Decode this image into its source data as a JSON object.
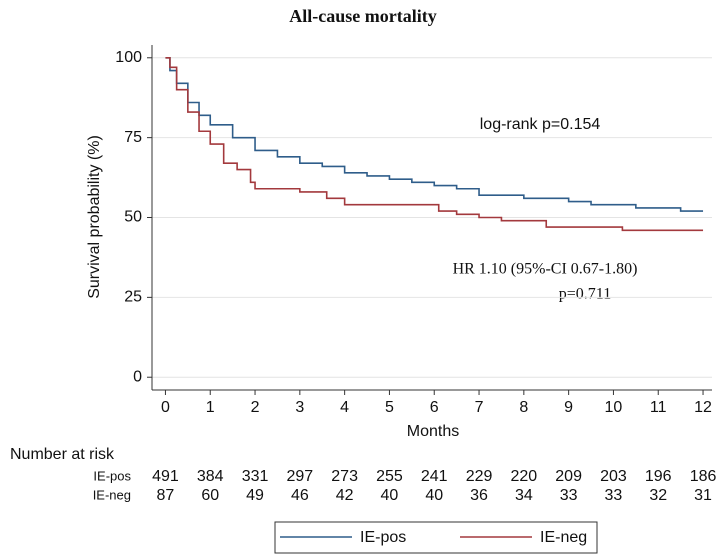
{
  "chart_data": {
    "type": "line",
    "step": true,
    "title": "All-cause mortality",
    "x_label": "Months",
    "y_label": "Survival probability (%)",
    "annotations": [
      "log-rank p=0.154",
      "HR 1.10 (95%-CI 0.67-1.80)",
      "p=0.711"
    ],
    "xlim": [
      -0.3,
      12.2
    ],
    "ylim": [
      -4,
      104
    ],
    "xticks": [
      0,
      1,
      2,
      3,
      4,
      5,
      6,
      7,
      8,
      9,
      10,
      11,
      12
    ],
    "yticks": [
      0,
      25,
      50,
      75,
      100
    ],
    "grid": true,
    "series": [
      {
        "name": "IE-pos",
        "color": "#2f5d8a",
        "x": [
          0,
          0.1,
          0.25,
          0.5,
          0.75,
          1,
          1.5,
          2,
          2.5,
          3,
          3.5,
          4,
          4.5,
          5,
          5.5,
          6,
          6.5,
          7,
          7.5,
          8,
          8.5,
          9,
          9.5,
          10,
          10.5,
          11,
          11.5,
          12
        ],
        "values": [
          100,
          96,
          92,
          86,
          82,
          79,
          75,
          71,
          69,
          67,
          66,
          64,
          63,
          62,
          61,
          60,
          59,
          57,
          57,
          56,
          56,
          55,
          54,
          54,
          53,
          53,
          52,
          52
        ]
      },
      {
        "name": "IE-neg",
        "color": "#a3393d",
        "x": [
          0,
          0.1,
          0.25,
          0.5,
          0.75,
          1,
          1.3,
          1.6,
          1.9,
          2,
          3,
          3.6,
          4,
          6.1,
          6.5,
          7,
          7.5,
          8.5,
          10.2,
          12
        ],
        "values": [
          100,
          97,
          90,
          83,
          77,
          73,
          67,
          65,
          61,
          59,
          58,
          56,
          54,
          52,
          51,
          50,
          49,
          47,
          46,
          46
        ]
      }
    ],
    "risk_table": {
      "title": "Number at risk",
      "rows": [
        {
          "name": "IE-pos",
          "values": [
            491,
            384,
            331,
            297,
            273,
            255,
            241,
            229,
            220,
            209,
            203,
            196,
            186
          ]
        },
        {
          "name": "IE-neg",
          "values": [
            87,
            60,
            49,
            46,
            42,
            40,
            40,
            36,
            34,
            33,
            33,
            32,
            31
          ]
        }
      ]
    }
  }
}
